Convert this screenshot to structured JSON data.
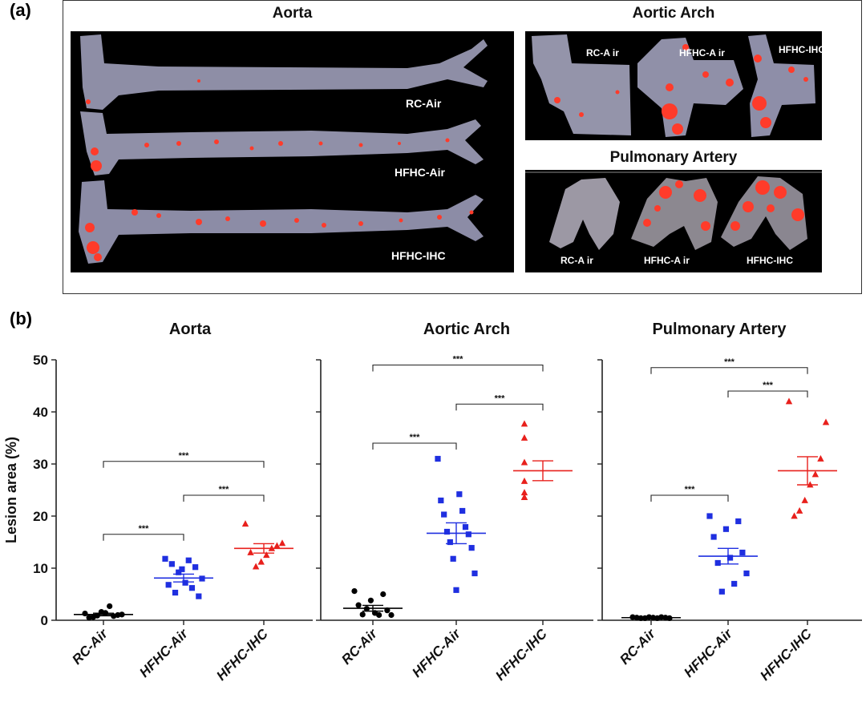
{
  "panel_a": {
    "label": "(a)",
    "aorta": {
      "title": "Aorta",
      "labels": [
        "RC-Air",
        "HFHC-Air",
        "HFHC-IHC"
      ]
    },
    "arch": {
      "title": "Aortic Arch",
      "labels": [
        "RC-A ir",
        "HFHC-A ir",
        "HFHC-IHC"
      ]
    },
    "pulmonary": {
      "title": "Pulmonary Artery",
      "labels": [
        "RC-A ir",
        "HFHC-A ir",
        "HFHC-IHC"
      ]
    },
    "colors": {
      "tissue": "#8e8ea6",
      "lesion": "#ff3b2a",
      "background": "#000000"
    }
  },
  "panel_b": {
    "label": "(b)"
  },
  "chart_data": [
    {
      "type": "scatter",
      "title": "Aorta",
      "ylabel": "Lesion area (%)",
      "ylim": [
        0,
        50
      ],
      "yticks": [
        0,
        10,
        20,
        30,
        40,
        50
      ],
      "show_tick_labels": true,
      "categories": [
        "RC-Air",
        "HFHC-Air",
        "HFHC-IHC"
      ],
      "series": [
        {
          "color": "#000000",
          "marker": "circle",
          "values": [
            1.3,
            0.8,
            1.6,
            0.5,
            1.0,
            1.4,
            0.6,
            1.1,
            2.7,
            0.9
          ],
          "mean": 1.1,
          "sem": 0.25
        },
        {
          "color": "#1f2fe0",
          "marker": "square",
          "values": [
            11.8,
            11.5,
            10.8,
            10.2,
            9.2,
            8.0,
            7.2,
            6.8,
            6.2,
            5.3,
            4.6,
            9.8
          ],
          "mean": 8.1,
          "sem": 0.75
        },
        {
          "color": "#e8201c",
          "marker": "triangle",
          "values": [
            18.5,
            14.8,
            14.3,
            13.8,
            12.5,
            11.2,
            10.3,
            13.0
          ],
          "mean": 13.8,
          "sem": 0.9
        }
      ],
      "significance": [
        {
          "pair": [
            0,
            1
          ],
          "y": 16.5,
          "label": "***"
        },
        {
          "pair": [
            1,
            2
          ],
          "y": 24.0,
          "label": "***"
        },
        {
          "pair": [
            0,
            2
          ],
          "y": 30.5,
          "label": "***"
        }
      ]
    },
    {
      "type": "scatter",
      "title": "Aortic Arch",
      "ylim": [
        0,
        50
      ],
      "yticks": [
        0,
        10,
        20,
        30,
        40,
        50
      ],
      "show_tick_labels": false,
      "categories": [
        "RC-Air",
        "HFHC-Air",
        "HFHC-IHC"
      ],
      "series": [
        {
          "color": "#000000",
          "marker": "circle",
          "values": [
            5.6,
            5.0,
            3.8,
            2.9,
            1.9,
            1.4,
            1.1,
            1.0,
            1.0,
            2.2
          ],
          "mean": 2.3,
          "sem": 0.55
        },
        {
          "color": "#1f2fe0",
          "marker": "square",
          "values": [
            31.0,
            24.2,
            23.0,
            21.0,
            20.3,
            17.9,
            17.0,
            16.5,
            15.0,
            13.9,
            11.8,
            9.0,
            5.8
          ],
          "mean": 16.7,
          "sem": 2.0
        },
        {
          "color": "#e8201c",
          "marker": "triangle",
          "values": [
            37.7,
            35.0,
            30.3,
            26.7,
            24.5,
            23.6,
            23.6
          ],
          "mean": 28.7,
          "sem": 1.9
        }
      ],
      "significance": [
        {
          "pair": [
            0,
            1
          ],
          "y": 34.0,
          "label": "***"
        },
        {
          "pair": [
            1,
            2
          ],
          "y": 41.5,
          "label": "***"
        },
        {
          "pair": [
            0,
            2
          ],
          "y": 49.0,
          "label": "***"
        }
      ]
    },
    {
      "type": "scatter",
      "title": "Pulmonary Artery",
      "ylim": [
        0,
        50
      ],
      "yticks": [
        0,
        10,
        20,
        30,
        40,
        50
      ],
      "show_tick_labels": false,
      "categories": [
        "RC-Air",
        "HFHC-Air",
        "HFHC-IHC"
      ],
      "series": [
        {
          "color": "#000000",
          "marker": "circle",
          "values": [
            0.6,
            0.6,
            0.6,
            0.5,
            0.5,
            0.5,
            0.4,
            0.4,
            0.4,
            0.4
          ],
          "mean": 0.5,
          "sem": 0.05
        },
        {
          "color": "#1f2fe0",
          "marker": "square",
          "values": [
            20.0,
            19.0,
            17.5,
            16.0,
            13.0,
            12.0,
            11.0,
            9.0,
            7.0,
            5.5
          ],
          "mean": 12.3,
          "sem": 1.5
        },
        {
          "color": "#e8201c",
          "marker": "triangle",
          "values": [
            42.0,
            38.0,
            31.0,
            28.0,
            26.0,
            23.0,
            21.0,
            20.0
          ],
          "mean": 28.7,
          "sem": 2.7
        }
      ],
      "significance": [
        {
          "pair": [
            0,
            1
          ],
          "y": 24.0,
          "label": "***"
        },
        {
          "pair": [
            1,
            2
          ],
          "y": 44.0,
          "label": "***"
        },
        {
          "pair": [
            0,
            2
          ],
          "y": 48.5,
          "label": "***"
        }
      ]
    }
  ]
}
